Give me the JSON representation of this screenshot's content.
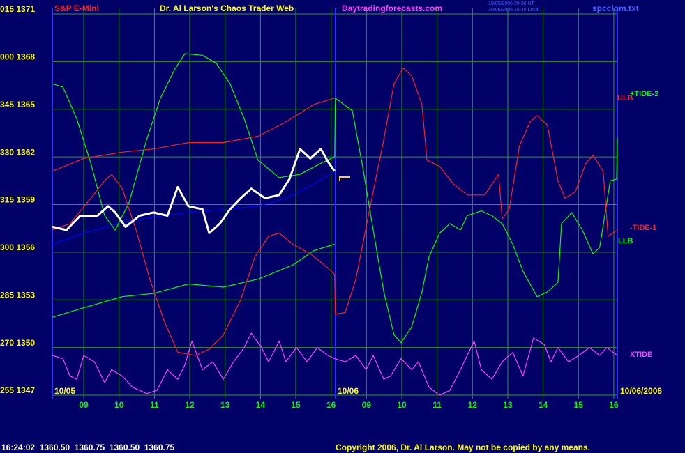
{
  "chart_data": {
    "type": "line",
    "title": "Dr. Al Larson's Chaos Trader Web",
    "symbol": "S&P E-Mini",
    "site": "Daytradingforecasts.com",
    "timestamps": [
      "10/05/2006 20:30 UT",
      "10/06/2006 15:30 Local"
    ],
    "file": "spcclom.txt",
    "date_labels": [
      "10/05",
      "10/06",
      "10/06/2006"
    ],
    "status": "16:24:02  1360.50  1360.75  1360.50  1360.75",
    "copyright": "Copyright 2006, Dr. Al Larson. May not be copied by any means.",
    "labels": [
      {
        "text": "+TIDE-2",
        "color": "#00ff00"
      },
      {
        "text": "ULB",
        "color": "#ff2020"
      },
      {
        "text": "-TIDE-1",
        "color": "#ff2020"
      },
      {
        "text": "LLB",
        "color": "#00ff00"
      },
      {
        "text": "XTIDE",
        "color": "#ff40ff"
      }
    ],
    "xlim": [
      -0.89,
      15.1
    ],
    "xticks": [
      {
        "value": 0,
        "label": "09"
      },
      {
        "value": 1,
        "label": "10"
      },
      {
        "value": 2,
        "label": "11"
      },
      {
        "value": 3,
        "label": "12"
      },
      {
        "value": 4,
        "label": "13"
      },
      {
        "value": 5,
        "label": "14"
      },
      {
        "value": 6,
        "label": "15"
      },
      {
        "value": 7,
        "label": "16"
      },
      {
        "value": 8,
        "label": "09"
      },
      {
        "value": 9,
        "label": "10"
      },
      {
        "value": 10,
        "label": "11"
      },
      {
        "value": 11,
        "label": "12"
      },
      {
        "value": 12,
        "label": "13"
      },
      {
        "value": 13,
        "label": "14"
      },
      {
        "value": 14,
        "label": "15"
      },
      {
        "value": 15,
        "label": "16"
      }
    ],
    "ylim": [
      1347,
      1371
    ],
    "yticks": [
      {
        "value": 1371,
        "label": "015 1371"
      },
      {
        "value": 1368,
        "label": "000 1368"
      },
      {
        "value": 1365,
        "label": "345 1365"
      },
      {
        "value": 1362,
        "label": "330 1362"
      },
      {
        "value": 1359,
        "label": "315 1359"
      },
      {
        "value": 1356,
        "label": "300 1356"
      },
      {
        "value": 1353,
        "label": "285 1353"
      },
      {
        "value": 1350,
        "label": "270 1350"
      },
      {
        "value": 1347,
        "label": "255 1347"
      }
    ],
    "grid": true,
    "series": [
      {
        "color": "#ff2020",
        "x": [
          -0.89,
          0,
          1.09,
          1.97,
          2.96,
          3.95,
          4.93,
          5.72,
          6.51,
          7.1
        ],
        "values": [
          1361.1,
          1361.9,
          1362.3,
          1362.5,
          1362.9,
          1362.9,
          1363.3,
          1364.2,
          1365.3,
          1365.7
        ]
      },
      {
        "color": "#00ff00",
        "x": [
          -0.89,
          0,
          1.09,
          1.97,
          2.96,
          3.95,
          4.93,
          5.92,
          6.51,
          7.1
        ],
        "values": [
          1351.9,
          1352.5,
          1353.2,
          1353.4,
          1354.0,
          1353.8,
          1354.3,
          1355.2,
          1356.1,
          1356.5
        ]
      },
      {
        "color": "#0000ff",
        "x": [
          -0.89,
          0,
          1.09,
          1.97,
          2.96,
          3.95,
          4.93,
          5.72,
          6.51,
          7.1
        ],
        "values": [
          1356.5,
          1357.2,
          1357.9,
          1358.2,
          1358.5,
          1358.7,
          1358.9,
          1359.4,
          1360.3,
          1361.1
        ]
      },
      {
        "color": "#00ff00",
        "x": [
          -0.89,
          -0.59,
          -0.2,
          0.2,
          0.59,
          0.89,
          1.28,
          1.78,
          2.17,
          2.57,
          2.86,
          3.36,
          3.75,
          4.14,
          4.54,
          4.93,
          5.53,
          6.12,
          6.71,
          7.1,
          7.12,
          7.6,
          7.89,
          8.19,
          8.49,
          8.78,
          8.98,
          9.28,
          9.57,
          9.77,
          10.07,
          10.36,
          10.66,
          10.85,
          11.25,
          11.55,
          11.84,
          12.14,
          12.43,
          12.83,
          13.12,
          13.42,
          13.52,
          13.81,
          14.11,
          14.41,
          14.6,
          14.9,
          15.08,
          15.1
        ],
        "values": [
          1366.6,
          1366.4,
          1364.4,
          1361.6,
          1358.3,
          1357.4,
          1359.1,
          1363.1,
          1365.7,
          1367.5,
          1368.5,
          1368.4,
          1367.9,
          1366.6,
          1364.4,
          1361.8,
          1360.7,
          1360.9,
          1361.6,
          1362.0,
          1365.7,
          1364.9,
          1361.4,
          1357.4,
          1353.5,
          1350.8,
          1350.3,
          1351.3,
          1353.5,
          1355.7,
          1357.2,
          1357.8,
          1357.4,
          1358.3,
          1358.6,
          1358.3,
          1357.8,
          1356.5,
          1354.8,
          1353.2,
          1353.5,
          1354.1,
          1357.8,
          1358.5,
          1357.4,
          1355.9,
          1356.3,
          1360.5,
          1360.6,
          1363.2
        ]
      },
      {
        "color": "#ff2020",
        "x": [
          -0.89,
          -0.39,
          0.2,
          0.59,
          0.79,
          1.09,
          1.48,
          1.87,
          2.27,
          2.66,
          3.16,
          3.55,
          3.95,
          4.44,
          4.84,
          5.23,
          5.53,
          5.92,
          6.41,
          6.81,
          7.1,
          7.12,
          7.4,
          7.7,
          8.09,
          8.49,
          8.78,
          9.04,
          9.28,
          9.57,
          9.71,
          10.07,
          10.46,
          10.85,
          11.35,
          11.74,
          11.84,
          12.04,
          12.33,
          12.63,
          12.83,
          13.12,
          13.42,
          13.62,
          13.91,
          14.21,
          14.41,
          14.7,
          14.84,
          15.1
        ],
        "values": [
          1357.4,
          1357.8,
          1359.4,
          1360.5,
          1360.9,
          1360.0,
          1357.4,
          1354.3,
          1351.7,
          1349.7,
          1349.5,
          1349.9,
          1350.8,
          1353.0,
          1355.7,
          1357.0,
          1357.2,
          1356.5,
          1355.9,
          1355.2,
          1354.6,
          1352.1,
          1352.2,
          1354.3,
          1358.7,
          1363.1,
          1366.6,
          1367.6,
          1367.1,
          1365.3,
          1361.8,
          1361.4,
          1360.3,
          1359.6,
          1359.6,
          1360.9,
          1358.1,
          1358.7,
          1362.7,
          1364.2,
          1364.6,
          1364.0,
          1360.5,
          1359.4,
          1359.8,
          1361.6,
          1362.1,
          1361.1,
          1357.0,
          1357.4
        ]
      },
      {
        "color": "#ff40ff",
        "x": [
          -0.89,
          -0.59,
          -0.39,
          -0.2,
          0,
          0.3,
          0.59,
          0.79,
          1.09,
          1.38,
          1.78,
          2.07,
          2.37,
          2.66,
          2.86,
          3.06,
          3.36,
          3.65,
          3.95,
          4.24,
          4.54,
          4.74,
          5.03,
          5.23,
          5.53,
          5.72,
          6.02,
          6.32,
          6.61,
          6.91,
          7.1,
          7.4,
          7.7,
          7.99,
          8.19,
          8.49,
          8.68,
          8.98,
          9.28,
          9.47,
          9.77,
          10.07,
          10.36,
          10.66,
          10.85,
          11.05,
          11.25,
          11.55,
          11.84,
          12.14,
          12.43,
          12.73,
          13.03,
          13.22,
          13.42,
          13.72,
          14.01,
          14.31,
          14.6,
          14.8,
          15.1
        ],
        "values": [
          1349.5,
          1349.3,
          1348.2,
          1348.0,
          1349.5,
          1349.1,
          1347.8,
          1348.6,
          1348.2,
          1347.5,
          1347.1,
          1347.3,
          1348.6,
          1348.0,
          1348.9,
          1350.4,
          1348.6,
          1349.1,
          1348.0,
          1349.1,
          1350.0,
          1350.9,
          1350.0,
          1349.1,
          1350.4,
          1349.1,
          1350.0,
          1349.1,
          1350.0,
          1349.5,
          1349.3,
          1349.1,
          1349.5,
          1348.6,
          1349.5,
          1348.0,
          1348.2,
          1349.3,
          1348.6,
          1349.1,
          1347.5,
          1347.0,
          1347.3,
          1348.6,
          1349.5,
          1350.4,
          1348.6,
          1348.0,
          1349.1,
          1349.7,
          1348.2,
          1350.6,
          1350.2,
          1349.1,
          1350.0,
          1349.1,
          1349.5,
          1350.0,
          1349.5,
          1350.0,
          1349.5
        ]
      },
      {
        "color": "#ffffff",
        "x": [
          -0.89,
          -0.49,
          -0.1,
          0.39,
          0.69,
          0.89,
          1.18,
          1.58,
          1.97,
          2.37,
          2.66,
          2.96,
          3.36,
          3.55,
          3.85,
          4.14,
          4.44,
          4.74,
          5.13,
          5.53,
          5.82,
          6.12,
          6.41,
          6.71,
          6.91,
          7.1
        ],
        "values": [
          1357.6,
          1357.4,
          1358.3,
          1358.3,
          1358.9,
          1358.5,
          1357.6,
          1358.3,
          1358.5,
          1358.3,
          1360.1,
          1358.9,
          1358.7,
          1357.2,
          1357.8,
          1358.7,
          1359.4,
          1360.0,
          1359.4,
          1359.6,
          1360.6,
          1362.5,
          1361.9,
          1362.5,
          1361.7,
          1361.1
        ]
      }
    ]
  }
}
